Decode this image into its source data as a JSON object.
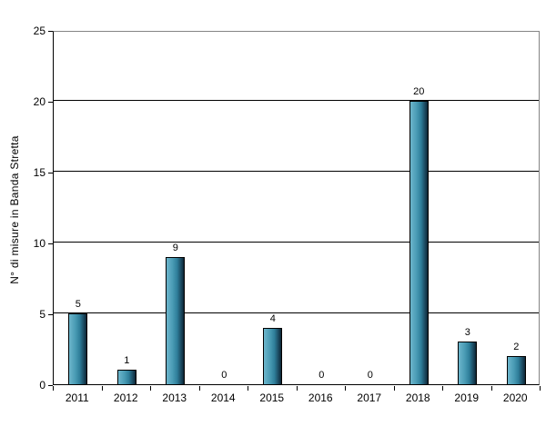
{
  "chart_data": {
    "type": "bar",
    "title": "",
    "categories": [
      "2011",
      "2012",
      "2013",
      "2014",
      "2015",
      "2016",
      "2017",
      "2018",
      "2019",
      "2020"
    ],
    "values": [
      5,
      1,
      9,
      0,
      4,
      0,
      0,
      20,
      3,
      2
    ],
    "value_labels": [
      "5",
      "1",
      "9",
      "0",
      "4",
      "0",
      "0",
      "20",
      "3",
      "2"
    ],
    "xlabel": "",
    "ylabel": "N° di misure in Banda Stretta",
    "ylim": [
      0,
      25
    ],
    "yticks": [
      0,
      5,
      10,
      15,
      20,
      25
    ],
    "ytick_labels": [
      "0",
      "5",
      "10",
      "15",
      "20",
      "25"
    ],
    "grid": "horizontal-black-lines",
    "legend": "none",
    "colors": {
      "bar_gradient_light": "#6db6cc",
      "bar_gradient_mid": "#2e7d99",
      "bar_gradient_dark": "#0b2533",
      "bar_border": "#000000",
      "gridline": "#000000",
      "axis_line": "#000000",
      "plot_outer_border": "#848484",
      "text": "#000000",
      "background": "#ffffff"
    }
  }
}
